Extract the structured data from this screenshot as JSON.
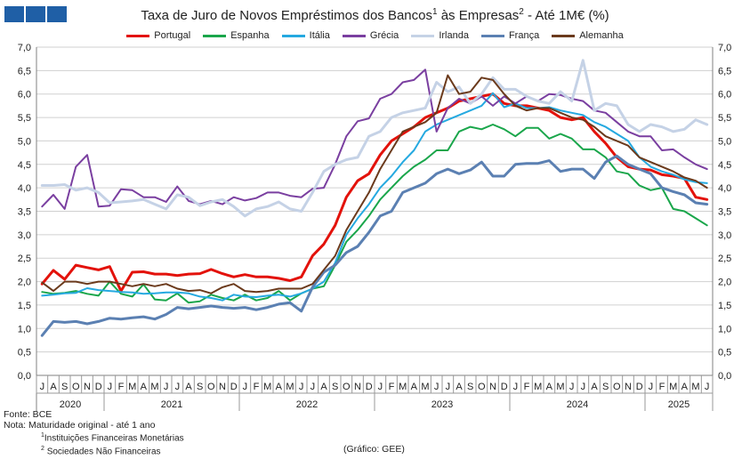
{
  "header": {
    "logo_name": "bank-logo",
    "title_main": "Taxa de Juro de Novos Empréstimos dos Bancos",
    "title_sup1": "1",
    "title_mid": " às Empresas",
    "title_sup2": "2",
    "title_end": " -  Até 1M€ (%)"
  },
  "footer": {
    "source": "Fonte: BCE",
    "note": "Nota: Maturidade original - até 1 ano",
    "fn1_num": "1",
    "fn1_text": "Instituições Financeiras Monetárias",
    "fn2_num": "2",
    "fn2_text": "Sociedades Não Financeiras",
    "credit": "(Gráfico: GEE)"
  },
  "chart_data": {
    "type": "line",
    "title": "Taxa de Juro de Novos Empréstimos dos Bancos1 às Empresas2 - Até 1M€ (%)",
    "xlabel": "",
    "ylabel": "",
    "ylim": [
      0,
      7
    ],
    "yticks": [
      "0,0",
      "0,5",
      "1,0",
      "1,5",
      "2,0",
      "2,5",
      "3,0",
      "3,5",
      "4,0",
      "4,5",
      "5,0",
      "5,5",
      "6,0",
      "6,5",
      "7,0"
    ],
    "grid": true,
    "legend_position": "top",
    "x": [
      "J",
      "A",
      "S",
      "O",
      "N",
      "D",
      "J",
      "F",
      "M",
      "A",
      "M",
      "J",
      "J",
      "A",
      "S",
      "O",
      "N",
      "D",
      "J",
      "F",
      "M",
      "A",
      "M",
      "J",
      "J",
      "A",
      "S",
      "O",
      "N",
      "D",
      "J",
      "F",
      "M",
      "A",
      "M",
      "J",
      "J",
      "A",
      "S",
      "O",
      "N",
      "D",
      "J",
      "F",
      "M",
      "A",
      "M",
      "J",
      "J",
      "A",
      "S",
      "O",
      "N",
      "D",
      "J",
      "F",
      "M",
      "A",
      "M",
      "J"
    ],
    "year_groups": [
      {
        "label": "2020",
        "start": 0,
        "end": 5
      },
      {
        "label": "2021",
        "start": 6,
        "end": 17
      },
      {
        "label": "2022",
        "start": 18,
        "end": 29
      },
      {
        "label": "2023",
        "start": 30,
        "end": 41
      },
      {
        "label": "2024",
        "start": 42,
        "end": 53
      },
      {
        "label": "2025",
        "start": 54,
        "end": 59
      }
    ],
    "series": [
      {
        "name": "Portugal",
        "color": "#e3120b",
        "width": 3,
        "values": [
          1.95,
          2.24,
          2.05,
          2.35,
          2.3,
          2.25,
          2.32,
          1.8,
          2.2,
          2.21,
          2.16,
          2.16,
          2.13,
          2.16,
          2.17,
          2.26,
          2.17,
          2.1,
          2.15,
          2.1,
          2.1,
          2.07,
          2.02,
          2.1,
          2.55,
          2.8,
          3.2,
          3.8,
          4.15,
          4.3,
          4.7,
          5.0,
          5.15,
          5.3,
          5.5,
          5.6,
          5.7,
          5.85,
          5.9,
          5.95,
          6.0,
          5.8,
          5.75,
          5.75,
          5.7,
          5.65,
          5.5,
          5.45,
          5.5,
          5.2,
          4.95,
          4.65,
          4.45,
          4.4,
          4.38,
          4.28,
          4.25,
          4.2,
          3.8,
          3.75
        ]
      },
      {
        "name": "Espanha",
        "color": "#1aa64b",
        "width": 2,
        "values": [
          1.78,
          1.74,
          1.76,
          1.8,
          1.74,
          1.7,
          2.0,
          1.74,
          1.68,
          1.94,
          1.62,
          1.6,
          1.75,
          1.55,
          1.58,
          1.72,
          1.65,
          1.6,
          1.72,
          1.6,
          1.65,
          1.8,
          1.6,
          1.75,
          1.85,
          1.9,
          2.35,
          2.85,
          3.1,
          3.4,
          3.75,
          4.0,
          4.25,
          4.45,
          4.6,
          4.8,
          4.8,
          5.2,
          5.3,
          5.25,
          5.35,
          5.25,
          5.1,
          5.28,
          5.28,
          5.05,
          5.15,
          5.05,
          4.82,
          4.82,
          4.65,
          4.35,
          4.3,
          4.05,
          3.95,
          4.0,
          3.55,
          3.5,
          3.35,
          3.2
        ]
      },
      {
        "name": "Itália",
        "color": "#25a9e0",
        "width": 2,
        "values": [
          1.7,
          1.72,
          1.75,
          1.76,
          1.86,
          1.82,
          1.8,
          1.78,
          1.77,
          1.74,
          1.75,
          1.77,
          1.77,
          1.75,
          1.68,
          1.65,
          1.6,
          1.72,
          1.68,
          1.67,
          1.7,
          1.72,
          1.68,
          1.75,
          1.85,
          2.0,
          2.4,
          3.0,
          3.35,
          3.65,
          4.0,
          4.25,
          4.55,
          4.8,
          5.2,
          5.35,
          5.45,
          5.55,
          5.65,
          5.75,
          6.02,
          5.72,
          5.8,
          5.7,
          5.7,
          5.72,
          5.65,
          5.6,
          5.55,
          5.4,
          5.3,
          5.15,
          5.0,
          4.65,
          4.45,
          4.35,
          4.28,
          4.18,
          4.12,
          4.1
        ]
      },
      {
        "name": "Grécia",
        "color": "#7a3fa0",
        "width": 2,
        "values": [
          3.6,
          3.85,
          3.55,
          4.45,
          4.7,
          3.6,
          3.62,
          3.97,
          3.95,
          3.8,
          3.8,
          3.7,
          4.03,
          3.72,
          3.65,
          3.72,
          3.65,
          3.8,
          3.73,
          3.78,
          3.9,
          3.9,
          3.83,
          3.8,
          3.98,
          4.0,
          4.5,
          5.1,
          5.42,
          5.48,
          5.9,
          6.0,
          6.25,
          6.3,
          6.52,
          5.2,
          5.7,
          5.9,
          5.8,
          5.95,
          5.75,
          5.95,
          5.8,
          5.95,
          5.85,
          6.0,
          5.98,
          5.9,
          5.85,
          5.65,
          5.6,
          5.4,
          5.2,
          5.1,
          5.1,
          4.8,
          4.82,
          4.65,
          4.5,
          4.4
        ]
      },
      {
        "name": "Irlanda",
        "color": "#c5d2e6",
        "width": 3,
        "values": [
          4.05,
          4.05,
          4.07,
          3.95,
          4.0,
          3.9,
          3.68,
          3.7,
          3.72,
          3.75,
          3.65,
          3.55,
          3.85,
          3.8,
          3.62,
          3.7,
          3.75,
          3.6,
          3.4,
          3.55,
          3.6,
          3.7,
          3.55,
          3.5,
          3.9,
          4.35,
          4.5,
          4.6,
          4.65,
          5.1,
          5.2,
          5.5,
          5.6,
          5.65,
          5.7,
          6.25,
          6.05,
          6.15,
          5.8,
          6.0,
          6.35,
          6.1,
          6.1,
          5.95,
          5.85,
          5.8,
          6.05,
          5.85,
          6.72,
          5.65,
          5.8,
          5.75,
          5.35,
          5.2,
          5.35,
          5.3,
          5.2,
          5.25,
          5.45,
          5.35
        ]
      },
      {
        "name": "França",
        "color": "#5b80b2",
        "width": 3,
        "values": [
          0.85,
          1.15,
          1.13,
          1.15,
          1.1,
          1.15,
          1.22,
          1.2,
          1.23,
          1.25,
          1.2,
          1.3,
          1.45,
          1.42,
          1.45,
          1.48,
          1.45,
          1.43,
          1.45,
          1.4,
          1.45,
          1.52,
          1.55,
          1.37,
          1.88,
          2.2,
          2.35,
          2.62,
          2.75,
          3.05,
          3.4,
          3.5,
          3.9,
          4.0,
          4.1,
          4.3,
          4.4,
          4.3,
          4.38,
          4.55,
          4.25,
          4.25,
          4.5,
          4.52,
          4.52,
          4.58,
          4.35,
          4.4,
          4.4,
          4.2,
          4.55,
          4.68,
          4.5,
          4.4,
          4.3,
          4.0,
          3.92,
          3.85,
          3.68,
          3.65
        ]
      },
      {
        "name": "Alemanha",
        "color": "#6b3a1c",
        "width": 2,
        "values": [
          1.98,
          1.8,
          2.0,
          2.0,
          1.95,
          2.0,
          2.0,
          1.95,
          1.9,
          1.95,
          1.9,
          1.95,
          1.85,
          1.8,
          1.82,
          1.75,
          1.88,
          1.95,
          1.8,
          1.78,
          1.8,
          1.85,
          1.85,
          1.85,
          1.95,
          2.25,
          2.55,
          3.1,
          3.5,
          3.9,
          4.4,
          4.8,
          5.2,
          5.3,
          5.4,
          5.6,
          6.4,
          6.0,
          6.05,
          6.35,
          6.3,
          6.0,
          5.75,
          5.65,
          5.7,
          5.7,
          5.6,
          5.5,
          5.45,
          5.3,
          5.1,
          5.0,
          4.9,
          4.65,
          4.55,
          4.45,
          4.35,
          4.22,
          4.15,
          4.0
        ]
      }
    ]
  }
}
